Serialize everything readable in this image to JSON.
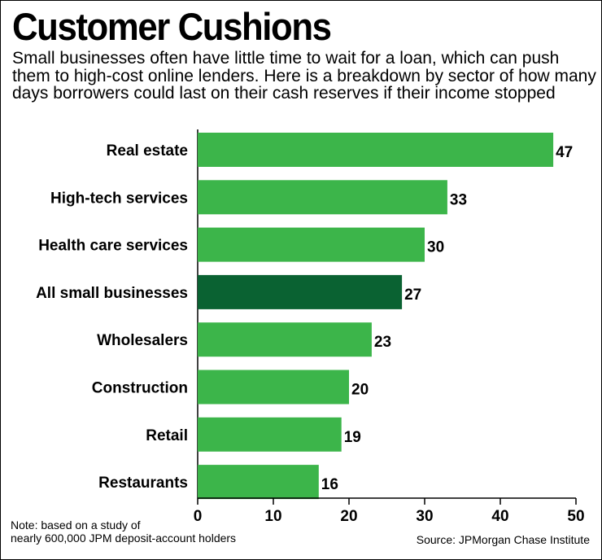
{
  "header": {
    "title": "Customer Cushions",
    "subtitle": "Small businesses often have little time to wait for a loan, which can push them to high-cost online lenders. Here is a breakdown by sector of how many days borrowers could last on their cash reserves if their income stopped"
  },
  "footer": {
    "note_line1": "Note: based on a study of",
    "note_line2": "nearly 600,000 JPM deposit-account holders",
    "source": "Source: JPMorgan Chase Institute"
  },
  "colors": {
    "bar": "#3cb54a",
    "highlight": "#0a6232",
    "axis": "#000000"
  },
  "chart_data": {
    "type": "bar",
    "orientation": "horizontal",
    "title": "Customer Cushions",
    "xlabel": "",
    "ylabel": "",
    "unit": "days",
    "categories": [
      "Real estate",
      "High-tech services",
      "Health care services",
      "All small businesses",
      "Wholesalers",
      "Construction",
      "Retail",
      "Restaurants"
    ],
    "values": [
      47,
      33,
      30,
      27,
      23,
      20,
      19,
      16
    ],
    "highlight_category": "All small businesses",
    "xlim": [
      0,
      50
    ],
    "xticks": [
      0,
      10,
      20,
      30,
      40,
      50
    ],
    "grid": false,
    "legend": "none"
  }
}
